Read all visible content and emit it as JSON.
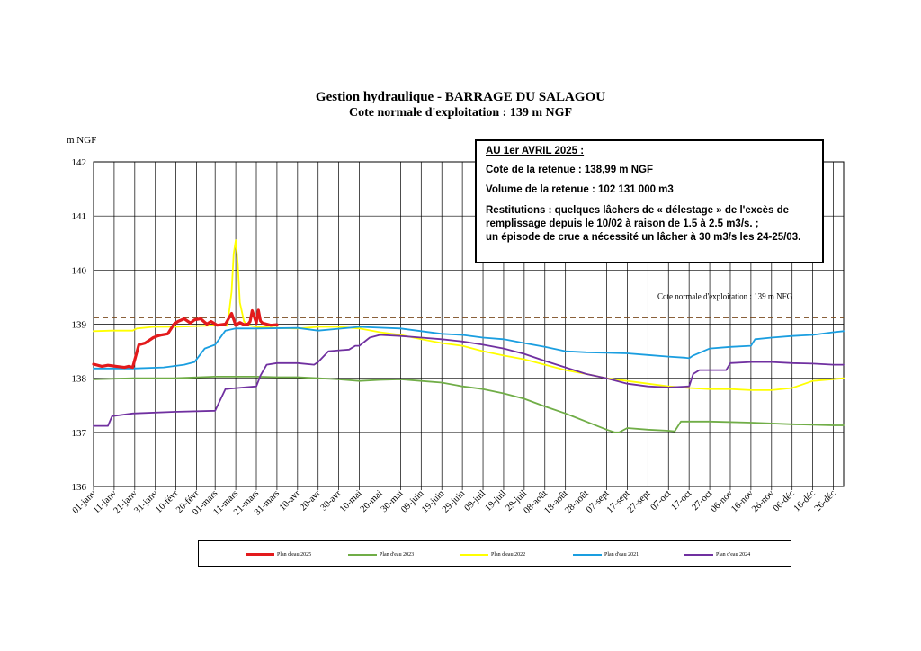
{
  "header": {
    "title": "Gestion hydraulique - BARRAGE DU SALAGOU",
    "subtitle": "Cote normale d'exploitation : 139 m NGF"
  },
  "infobox": {
    "line1": "AU 1er AVRIL 2025 :",
    "line2": "Cote de la retenue : 138,99 m NGF",
    "line3": "Volume de la retenue : 102 131 000 m3",
    "line4": "Restitutions : quelques lâchers de « délestage » de l'excès de",
    "line5": "remplissage depuis le 10/02 à raison de 1.5 à 2.5 m3/s. ;",
    "line6": "un épisode de crue a nécessité un lâcher à 30 m3/s les 24-25/03."
  },
  "chart_data": {
    "type": "line",
    "title": "Gestion hydraulique - BARRAGE DU SALAGOU",
    "ylabel": "m NGF",
    "xlabel": "",
    "ylim": [
      136,
      142
    ],
    "yticks": [
      "136",
      "137",
      "138",
      "139",
      "140",
      "141",
      "142"
    ],
    "xlim": [
      1,
      365
    ],
    "grid": true,
    "legend_position": "bottom",
    "xticks": [
      {
        "day": 1,
        "label": "01-janv"
      },
      {
        "day": 11,
        "label": "11-janv"
      },
      {
        "day": 21,
        "label": "21-janv"
      },
      {
        "day": 31,
        "label": "31-janv"
      },
      {
        "day": 41,
        "label": "10-févr"
      },
      {
        "day": 51,
        "label": "20-févr"
      },
      {
        "day": 60,
        "label": "01-mars"
      },
      {
        "day": 70,
        "label": "11-mars"
      },
      {
        "day": 80,
        "label": "21-mars"
      },
      {
        "day": 90,
        "label": "31-mars"
      },
      {
        "day": 100,
        "label": "10-avr"
      },
      {
        "day": 110,
        "label": "20-avr"
      },
      {
        "day": 120,
        "label": "30-avr"
      },
      {
        "day": 130,
        "label": "10-mai"
      },
      {
        "day": 140,
        "label": "20-mai"
      },
      {
        "day": 150,
        "label": "30-mai"
      },
      {
        "day": 160,
        "label": "09-juin"
      },
      {
        "day": 170,
        "label": "19-juin"
      },
      {
        "day": 180,
        "label": "29-juin"
      },
      {
        "day": 190,
        "label": "09-juil"
      },
      {
        "day": 200,
        "label": "19-juil"
      },
      {
        "day": 210,
        "label": "29-juil"
      },
      {
        "day": 220,
        "label": "08-août"
      },
      {
        "day": 230,
        "label": "18-août"
      },
      {
        "day": 240,
        "label": "28-août"
      },
      {
        "day": 250,
        "label": "07-sept"
      },
      {
        "day": 260,
        "label": "17-sept"
      },
      {
        "day": 270,
        "label": "27-sept"
      },
      {
        "day": 280,
        "label": "07-oct"
      },
      {
        "day": 290,
        "label": "17-oct"
      },
      {
        "day": 300,
        "label": "27-oct"
      },
      {
        "day": 310,
        "label": "06-nov"
      },
      {
        "day": 320,
        "label": "16-nov"
      },
      {
        "day": 330,
        "label": "26-nov"
      },
      {
        "day": 340,
        "label": "06-déc"
      },
      {
        "day": 350,
        "label": "16-déc"
      },
      {
        "day": 360,
        "label": "26-déc"
      }
    ],
    "reference_line": {
      "value": 139.12,
      "label": "Cote normale d'exploitation : 139 m NFG",
      "color": "#7a4a1e"
    },
    "series": [
      {
        "name": "Plan d'eau 2025",
        "color": "#e31a1c",
        "width": 3.2,
        "x": [
          1,
          5,
          8,
          12,
          16,
          18,
          20,
          23,
          26,
          30,
          32,
          34,
          37,
          40,
          42,
          45,
          48,
          50,
          53,
          56,
          58,
          61,
          65,
          68,
          70,
          72,
          74,
          76,
          77,
          78,
          80,
          81,
          82,
          83,
          85,
          87,
          90
        ],
        "y": [
          138.26,
          138.22,
          138.24,
          138.22,
          138.2,
          138.22,
          138.2,
          138.62,
          138.65,
          138.75,
          138.78,
          138.8,
          138.82,
          139.0,
          139.05,
          139.1,
          139.02,
          139.08,
          139.1,
          139.0,
          139.05,
          138.98,
          139.0,
          139.2,
          138.98,
          139.03,
          138.99,
          139.0,
          139.05,
          139.25,
          139.02,
          139.26,
          139.06,
          139.02,
          139.0,
          138.98,
          138.99
        ]
      },
      {
        "name": "Plan d'eau 2023",
        "color": "#70ad47",
        "width": 1.8,
        "x": [
          1,
          20,
          40,
          60,
          80,
          90,
          100,
          110,
          120,
          130,
          140,
          150,
          160,
          170,
          180,
          190,
          200,
          210,
          220,
          230,
          240,
          250,
          254,
          256,
          260,
          270,
          280,
          283,
          286,
          300,
          320,
          340,
          360,
          365
        ],
        "y": [
          137.98,
          138.0,
          138.0,
          138.03,
          138.03,
          138.02,
          138.02,
          138.0,
          137.98,
          137.95,
          137.97,
          137.98,
          137.95,
          137.92,
          137.85,
          137.8,
          137.72,
          137.62,
          137.48,
          137.35,
          137.2,
          137.05,
          137.0,
          137.0,
          137.08,
          137.05,
          137.03,
          137.02,
          137.2,
          137.2,
          137.18,
          137.15,
          137.13,
          137.13
        ]
      },
      {
        "name": "Plan d'eau 2022",
        "color": "#ffff00",
        "width": 1.8,
        "x": [
          1,
          10,
          20,
          22,
          30,
          40,
          55,
          62,
          66,
          68,
          69,
          70,
          71,
          72,
          74,
          76,
          80,
          90,
          100,
          110,
          120,
          130,
          140,
          150,
          160,
          170,
          180,
          190,
          200,
          210,
          220,
          230,
          240,
          250,
          260,
          270,
          280,
          290,
          300,
          310,
          320,
          330,
          340,
          350,
          365
        ],
        "y": [
          138.87,
          138.88,
          138.88,
          138.92,
          138.95,
          138.95,
          138.97,
          138.98,
          138.97,
          139.6,
          140.3,
          140.55,
          140.1,
          139.4,
          139.05,
          138.98,
          138.95,
          138.93,
          138.92,
          138.95,
          138.95,
          138.92,
          138.85,
          138.8,
          138.72,
          138.65,
          138.6,
          138.5,
          138.42,
          138.35,
          138.25,
          138.15,
          138.08,
          138.0,
          137.95,
          137.9,
          137.85,
          137.82,
          137.8,
          137.8,
          137.78,
          137.78,
          137.82,
          137.95,
          138.0
        ]
      },
      {
        "name": "Plan d'eau 2021",
        "color": "#1a9ee0",
        "width": 1.8,
        "x": [
          1,
          20,
          35,
          45,
          50,
          55,
          60,
          65,
          70,
          80,
          100,
          110,
          130,
          150,
          160,
          170,
          180,
          190,
          200,
          210,
          220,
          230,
          240,
          250,
          260,
          270,
          280,
          288,
          290,
          292,
          300,
          310,
          320,
          322,
          330,
          340,
          350,
          360,
          365
        ],
        "y": [
          138.18,
          138.18,
          138.2,
          138.25,
          138.3,
          138.55,
          138.62,
          138.88,
          138.92,
          138.92,
          138.93,
          138.88,
          138.95,
          138.92,
          138.87,
          138.82,
          138.8,
          138.75,
          138.72,
          138.65,
          138.58,
          138.5,
          138.48,
          138.47,
          138.46,
          138.43,
          138.4,
          138.38,
          138.37,
          138.42,
          138.55,
          138.58,
          138.6,
          138.72,
          138.75,
          138.78,
          138.8,
          138.85,
          138.87
        ]
      },
      {
        "name": "Plan d'eau 2024",
        "color": "#7030a0",
        "width": 1.8,
        "x": [
          1,
          8,
          10,
          20,
          40,
          60,
          65,
          80,
          82,
          85,
          90,
          100,
          108,
          110,
          115,
          125,
          128,
          130,
          135,
          140,
          150,
          160,
          170,
          180,
          190,
          200,
          210,
          220,
          230,
          240,
          250,
          260,
          270,
          280,
          290,
          292,
          295,
          300,
          308,
          310,
          320,
          330,
          340,
          350,
          360,
          365
        ],
        "y": [
          137.12,
          137.12,
          137.3,
          137.35,
          137.38,
          137.4,
          137.8,
          137.85,
          138.05,
          138.25,
          138.28,
          138.28,
          138.25,
          138.3,
          138.5,
          138.53,
          138.6,
          138.6,
          138.75,
          138.8,
          138.78,
          138.75,
          138.72,
          138.68,
          138.62,
          138.55,
          138.45,
          138.32,
          138.2,
          138.08,
          138.0,
          137.9,
          137.85,
          137.83,
          137.85,
          138.08,
          138.15,
          138.15,
          138.15,
          138.28,
          138.3,
          138.3,
          138.28,
          138.27,
          138.25,
          138.25
        ]
      }
    ]
  }
}
